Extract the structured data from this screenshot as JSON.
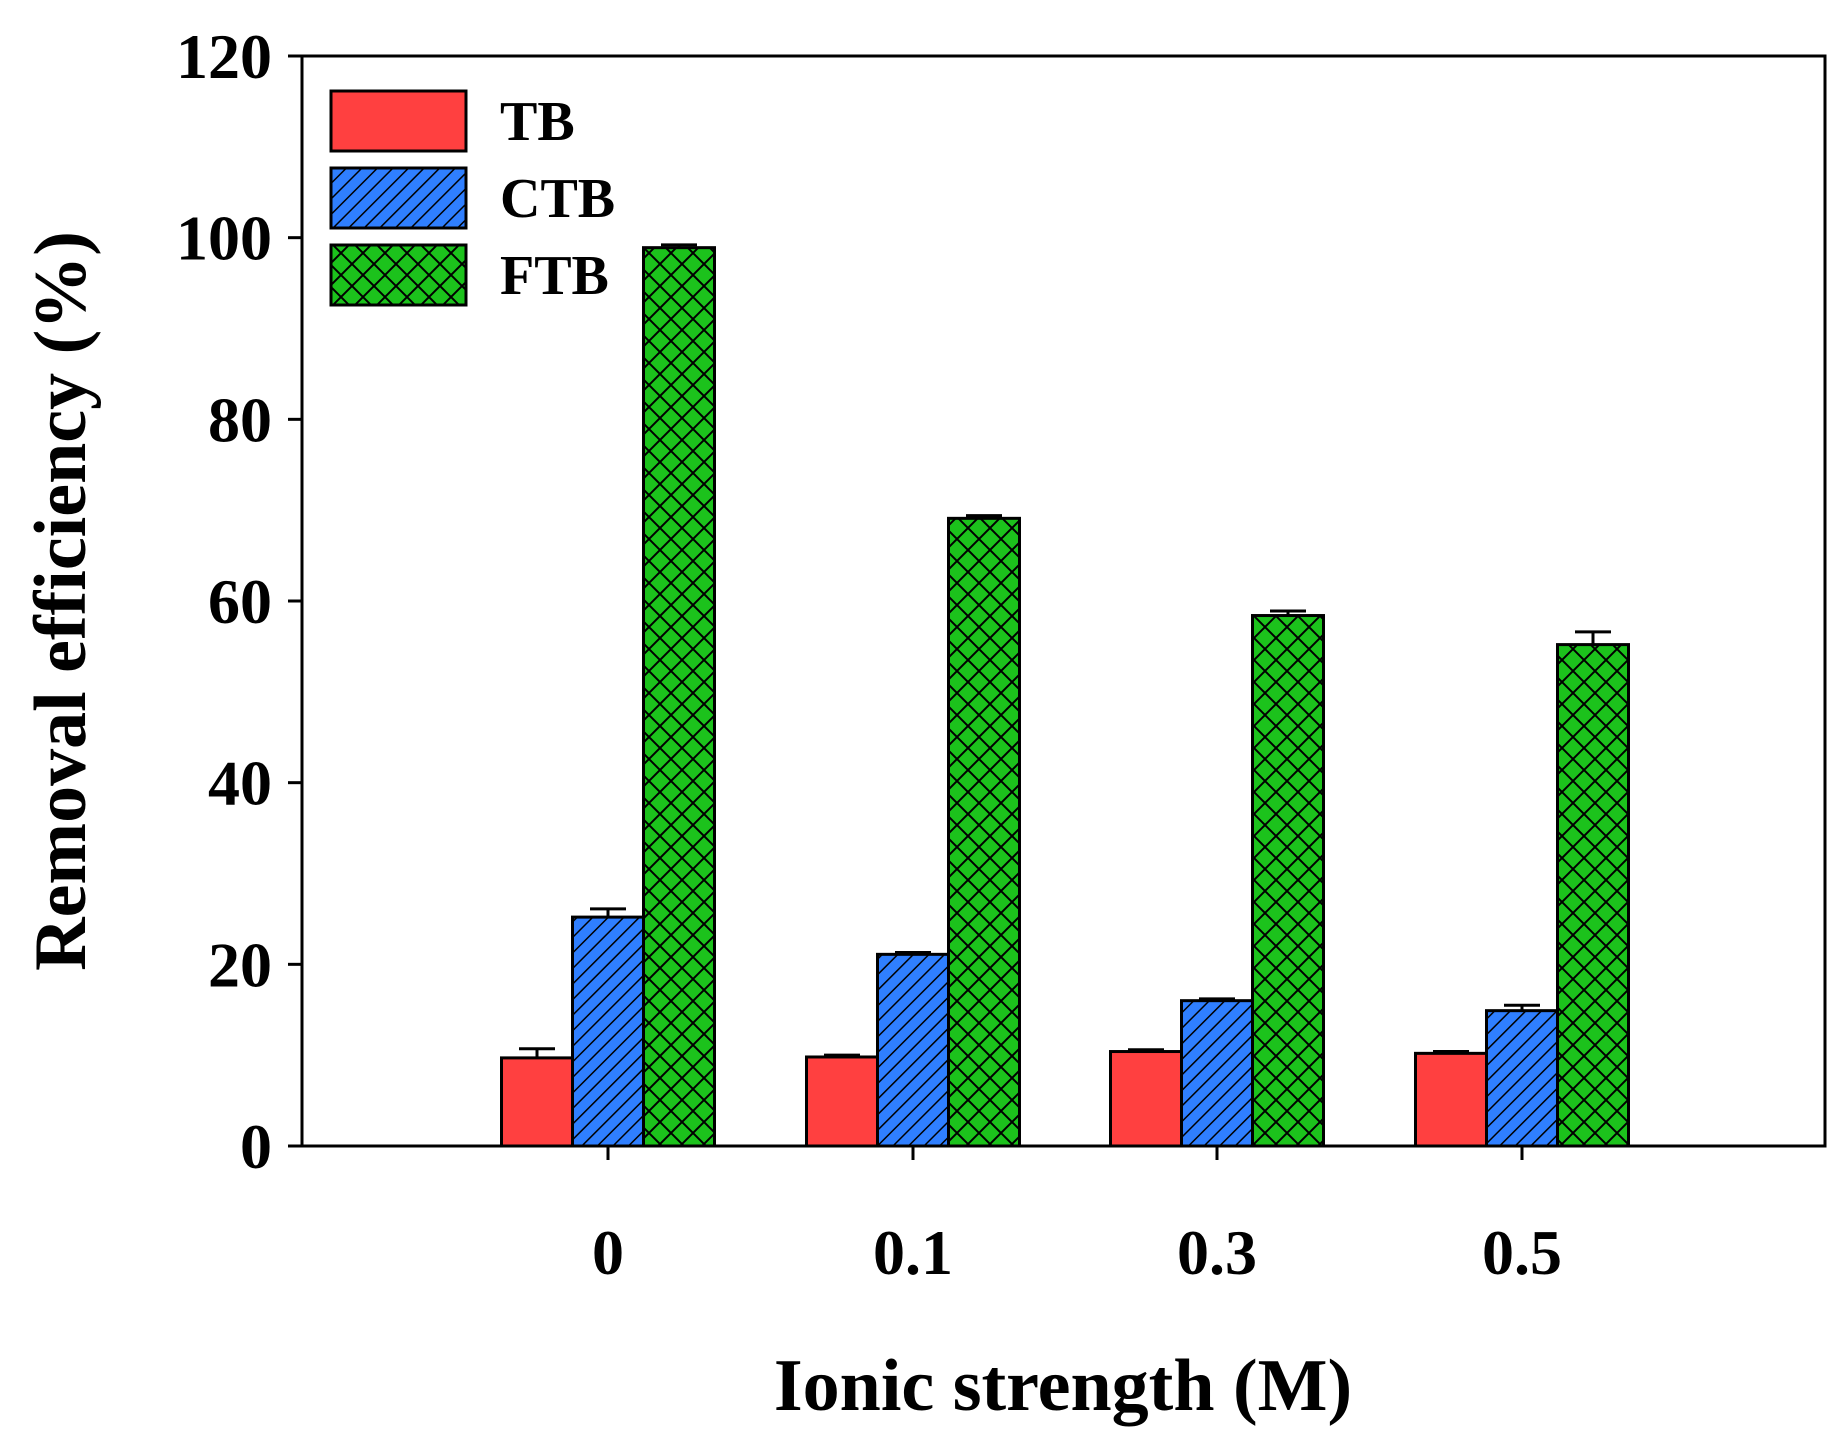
{
  "chart_data": {
    "type": "bar",
    "title": "",
    "xlabel": "Ionic strength (M)",
    "ylabel": "Removal efficiency (%)",
    "categories": [
      "0",
      "0.1",
      "0.3",
      "0.5"
    ],
    "ylim": [
      0,
      120
    ],
    "yticks": [
      0,
      20,
      40,
      60,
      80,
      100,
      120
    ],
    "yticks_labels": [
      "0",
      "20",
      "40",
      "60",
      "80",
      "100",
      "120"
    ],
    "grid": false,
    "legend_position": "top-left",
    "series": [
      {
        "name": "TB",
        "color": "#ff4040",
        "pattern": "solid",
        "values": [
          9.7,
          9.8,
          10.4,
          10.2
        ],
        "errors": [
          1.0,
          0.2,
          0.2,
          0.2
        ]
      },
      {
        "name": "CTB",
        "color": "#2f7fff",
        "pattern": "diagonal",
        "values": [
          25.2,
          21.1,
          16.0,
          14.9
        ],
        "errors": [
          0.9,
          0.2,
          0.2,
          0.6
        ]
      },
      {
        "name": "FTB",
        "color": "#1cc21c",
        "pattern": "crosshatch",
        "values": [
          98.9,
          69.1,
          58.4,
          55.2
        ],
        "errors": [
          0.3,
          0.3,
          0.5,
          1.4
        ]
      }
    ]
  }
}
